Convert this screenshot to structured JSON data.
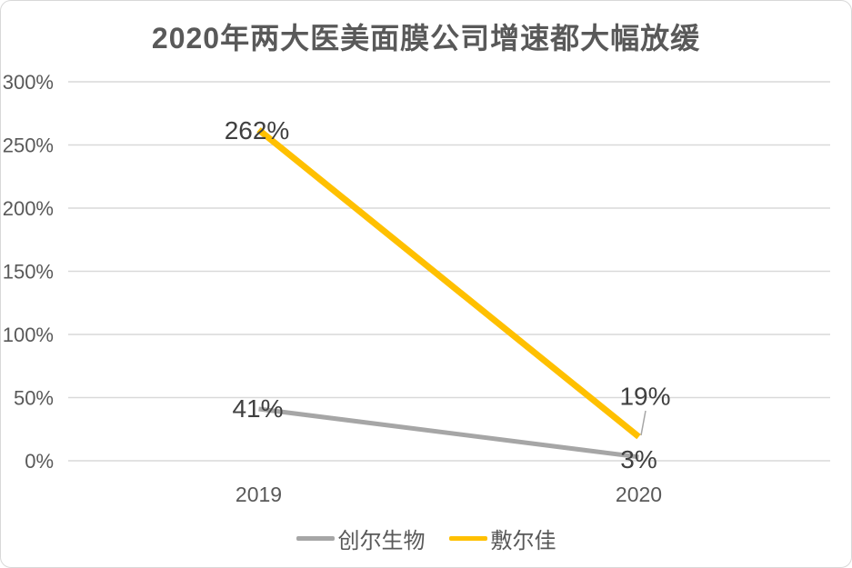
{
  "card": {
    "background": "#ffffff",
    "border_color": "#d8d8d8"
  },
  "chart_data": {
    "type": "line",
    "title": "2020年两大医美面膜公司增速都大幅放缓",
    "categories": [
      "2019",
      "2020"
    ],
    "series": [
      {
        "name": "创尔生物",
        "values": [
          41,
          3
        ],
        "labels": [
          "41%",
          "3%"
        ],
        "color": "#a6a6a6",
        "line_width": 5
      },
      {
        "name": "敷尔佳",
        "values": [
          262,
          19
        ],
        "labels": [
          "262%",
          "19%"
        ],
        "color": "#ffc000",
        "line_width": 7
      }
    ],
    "y_axis": {
      "min": 0,
      "max": 300,
      "step": 50,
      "tick_labels": [
        "0%",
        "50%",
        "100%",
        "150%",
        "200%",
        "250%",
        "300%"
      ]
    },
    "x_axis": {
      "tick_labels": [
        "2019",
        "2020"
      ]
    },
    "grid": true,
    "legend_position": "bottom",
    "colors": {
      "grid": "#d9d9d9",
      "axis_text": "#595959",
      "data_label_text": "#404040",
      "title_text": "#595959",
      "leader_line": "#a6a6a6"
    }
  }
}
